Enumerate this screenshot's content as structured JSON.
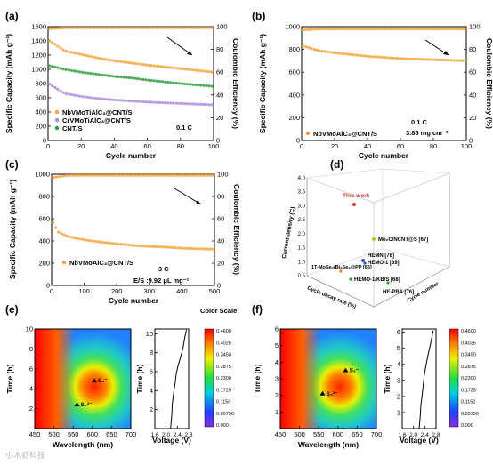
{
  "chart_data": [
    {
      "panel": "(a)",
      "type": "scatter",
      "xlabel": "Cycle number",
      "ylabel": "Specific Capacity (mAh g⁻¹)",
      "y2label": "Coulombic Efficiency (%)",
      "xlim": [
        0,
        100
      ],
      "ylim": [
        0,
        1600
      ],
      "y2lim": [
        0,
        100
      ],
      "xticks": [
        "0",
        "20",
        "40",
        "60",
        "80",
        "100"
      ],
      "yticks": [
        "0",
        "200",
        "400",
        "600",
        "800",
        "1000",
        "1200",
        "1400",
        "1600"
      ],
      "y2ticks": [
        "0",
        "20",
        "40",
        "60",
        "80",
        "100"
      ],
      "rate": "0.1 C",
      "series": [
        {
          "name": "NbVMoTiAlC₃@CNT/S",
          "color": "#f5a33a",
          "x": [
            1,
            10,
            20,
            30,
            40,
            50,
            60,
            70,
            80,
            90,
            100
          ],
          "y": [
            1400,
            1260,
            1210,
            1160,
            1120,
            1090,
            1060,
            1035,
            1010,
            985,
            960
          ]
        },
        {
          "name": "CrVMoTiAlC₃@CNT/S",
          "color": "#a98ae0",
          "x": [
            1,
            10,
            20,
            30,
            40,
            50,
            60,
            70,
            80,
            90,
            100
          ],
          "y": [
            790,
            660,
            620,
            590,
            570,
            555,
            540,
            530,
            520,
            510,
            500
          ]
        },
        {
          "name": "CNT/S",
          "color": "#2e9e3e",
          "x": [
            1,
            10,
            20,
            30,
            40,
            50,
            60,
            70,
            80,
            90,
            100
          ],
          "y": [
            1050,
            1000,
            960,
            930,
            900,
            880,
            850,
            825,
            800,
            780,
            760
          ]
        },
        {
          "name": "",
          "color": "#f5a33a",
          "axis": "right",
          "x": [
            1,
            10,
            20,
            30,
            40,
            50,
            60,
            70,
            80,
            90,
            100
          ],
          "y": [
            98,
            99,
            99,
            99,
            99,
            99,
            99,
            99,
            99,
            99,
            99
          ]
        }
      ]
    },
    {
      "panel": "(b)",
      "type": "scatter",
      "xlabel": "Cycle number",
      "ylabel": "Specific Capacity (mAh g⁻¹)",
      "y2label": "Coulombic Efficiency (%)",
      "xlim": [
        0,
        100
      ],
      "ylim": [
        0,
        1000
      ],
      "y2lim": [
        0,
        100
      ],
      "xticks": [
        "0",
        "20",
        "40",
        "60",
        "80",
        "100"
      ],
      "yticks": [
        "0",
        "200",
        "400",
        "600",
        "800",
        "1000"
      ],
      "y2ticks": [
        "0",
        "20",
        "40",
        "60",
        "80",
        "100"
      ],
      "rate": "0.1 C",
      "loading": "3.85 mg cm⁻²",
      "series": [
        {
          "name": "NbVMoAlC₃@CNT/S",
          "color": "#f5a33a",
          "x": [
            1,
            10,
            20,
            30,
            40,
            50,
            60,
            70,
            80,
            90,
            100
          ],
          "y": [
            830,
            790,
            770,
            755,
            740,
            730,
            720,
            715,
            710,
            705,
            700
          ]
        },
        {
          "name": "",
          "color": "#f5a33a",
          "axis": "right",
          "x": [
            1,
            10,
            20,
            30,
            40,
            50,
            60,
            70,
            80,
            90,
            100
          ],
          "y": [
            97,
            98,
            98,
            98,
            98,
            98,
            98,
            98,
            98,
            98,
            98
          ]
        }
      ]
    },
    {
      "panel": "(c)",
      "type": "scatter",
      "xlabel": "Cycle number",
      "ylabel": "Specific Capacity (mAh g⁻¹)",
      "y2label": "Coulombic Efficiency (%)",
      "xlim": [
        0,
        500
      ],
      "ylim": [
        0,
        1000
      ],
      "y2lim": [
        0,
        100
      ],
      "xticks": [
        "0",
        "100",
        "200",
        "300",
        "400",
        "500"
      ],
      "yticks": [
        "0",
        "200",
        "400",
        "600",
        "800",
        "1000"
      ],
      "y2ticks": [
        "0",
        "20",
        "40",
        "60",
        "80",
        "100"
      ],
      "rate": "3 C",
      "es_ratio": "E/S :9.92 μL mg⁻¹",
      "series": [
        {
          "name": "NbVMoAlC₃@CNT/S",
          "color": "#f5a33a",
          "x": [
            1,
            20,
            50,
            100,
            150,
            200,
            250,
            300,
            350,
            400,
            450,
            500
          ],
          "y": [
            580,
            480,
            440,
            410,
            390,
            375,
            360,
            350,
            345,
            335,
            330,
            325
          ]
        },
        {
          "name": "",
          "color": "#f5a33a",
          "axis": "right",
          "x": [
            1,
            50,
            100,
            200,
            300,
            400,
            500
          ],
          "y": [
            97,
            99,
            99,
            99,
            99,
            99,
            99
          ]
        }
      ]
    },
    {
      "panel": "(d)",
      "type": "scatter",
      "axes3d": {
        "z": "Current density (C)",
        "x": "Cycle number",
        "y": "Cycle decay rate (%)"
      },
      "zticks": [
        "0.5",
        "1.0",
        "1.5",
        "2.0",
        "2.5",
        "3.0",
        "3.5",
        "4.0"
      ],
      "points": [
        {
          "label": "This work",
          "color": "#e03030"
        },
        {
          "label": "Mo₂C/NCNT@S [67]",
          "color": "#c8c000"
        },
        {
          "label": "HEMN [78]",
          "color": "#3050d0"
        },
        {
          "label": "HEMO-1 [69]",
          "color": "#3050d0"
        },
        {
          "label": "1T-MoSe₂/Bi₂Se₃@PP [66]",
          "color": "#e08020"
        },
        {
          "label": "HEMO-1/KB/S [68]",
          "color": "#30a030"
        },
        {
          "label": "HE-PBA [76]",
          "color": "#30a030"
        }
      ]
    },
    {
      "panel": "(e)",
      "type": "heatmap",
      "xlabel": "Wavelength (nm)",
      "ylabel": "Time (h)",
      "xlim": [
        450,
        700
      ],
      "ylim": [
        0,
        10
      ],
      "xticks": [
        "450",
        "500",
        "550",
        "600",
        "650",
        "700"
      ],
      "yticks": [
        "2",
        "4",
        "6",
        "8",
        "10"
      ],
      "peaks": [
        {
          "label": "S₃⁻",
          "x": 605,
          "y": 4.8
        },
        {
          "label": "S₄²⁻",
          "x": 560,
          "y": 2.4
        }
      ],
      "voltage": {
        "xlabel": "Voltage (V)",
        "ylabel": "Time (h)",
        "xticks": [
          "1.6",
          "2.0",
          "2.4",
          "2.8"
        ],
        "yticks": [
          "2",
          "4",
          "6",
          "8",
          "10"
        ],
        "xlim": [
          1.6,
          2.8
        ],
        "ylim": [
          0,
          10.5
        ],
        "x": [
          2.72,
          2.66,
          2.6,
          2.5,
          2.42,
          2.36,
          2.32,
          2.26,
          2.22,
          2.2,
          2.16
        ],
        "y": [
          10.4,
          9.6,
          8.5,
          7.4,
          6.6,
          5.8,
          4.8,
          3.6,
          2.6,
          1.4,
          0
        ]
      },
      "colorbar": {
        "title": "Color Scale",
        "ticks": [
          "0.4600",
          "0.4025",
          "0.3450",
          "0.2875",
          "0.2300",
          "0.1725",
          "0.1150",
          "0.05750",
          "0.000"
        ]
      }
    },
    {
      "panel": "(f)",
      "type": "heatmap",
      "xlabel": "Wavelength (nm)",
      "ylabel": "Time (h)",
      "xlim": [
        450,
        700
      ],
      "ylim": [
        0,
        6
      ],
      "xticks": [
        "450",
        "500",
        "550",
        "600",
        "650",
        "700"
      ],
      "yticks": [
        "1",
        "2",
        "3",
        "4",
        "5",
        "6"
      ],
      "peaks": [
        {
          "label": "S₃⁻",
          "x": 620,
          "y": 3.5
        },
        {
          "label": "S₄²⁻",
          "x": 560,
          "y": 2.1
        }
      ],
      "voltage": {
        "xlabel": "Voltage (V)",
        "ylabel": "Time (h)",
        "xticks": [
          "1.6",
          "2.0",
          "2.4",
          "2.8"
        ],
        "yticks": [
          "1",
          "2",
          "3",
          "4",
          "5",
          "6"
        ],
        "xlim": [
          1.6,
          2.8
        ],
        "ylim": [
          0,
          6.2
        ],
        "x": [
          2.7,
          2.62,
          2.52,
          2.44,
          2.38,
          2.34,
          2.3,
          2.26,
          2.24,
          2.2
        ],
        "y": [
          6.1,
          5.4,
          4.6,
          3.9,
          3.3,
          2.6,
          2.0,
          1.4,
          0.8,
          0
        ]
      },
      "colorbar": {
        "title": "",
        "ticks": [
          "0.4600",
          "0.4025",
          "0.3450",
          "0.2875",
          "0.2300",
          "0.1725",
          "0.1150",
          "0.05750",
          "0.000"
        ]
      }
    }
  ],
  "watermark": "小木虾科技"
}
